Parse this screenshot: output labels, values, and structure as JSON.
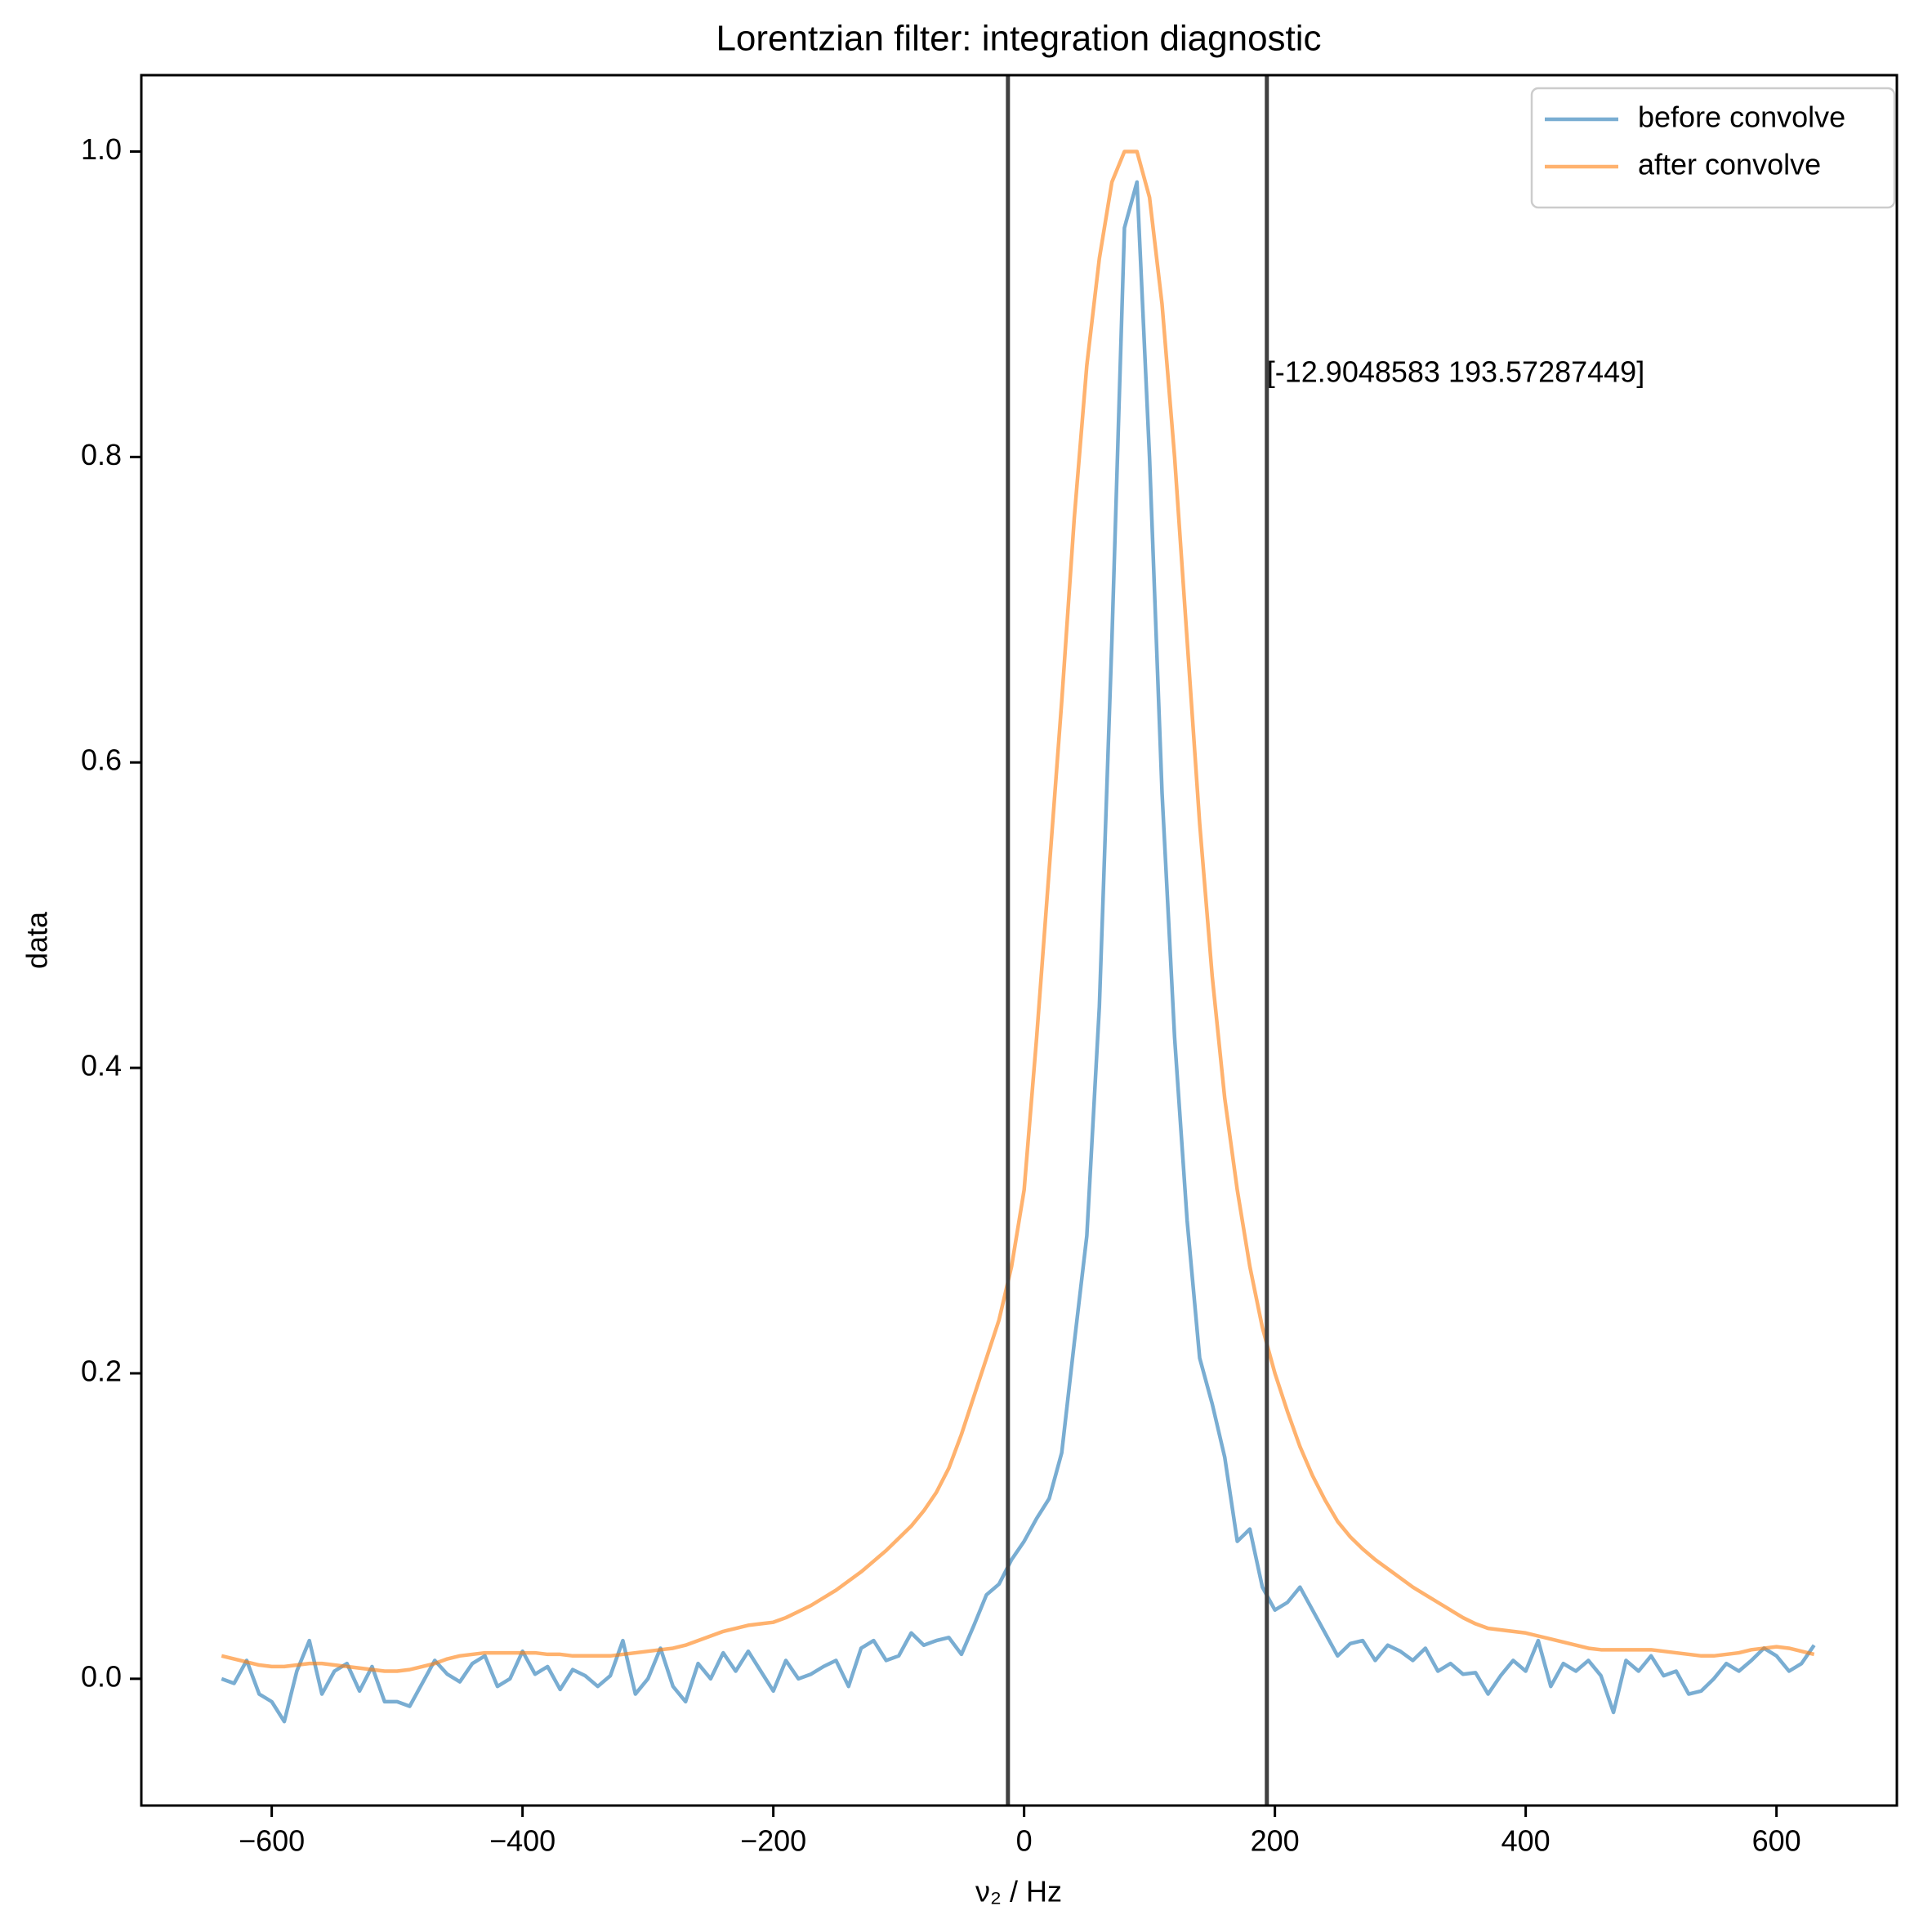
{
  "chart_data": {
    "type": "line",
    "title": "Lorentzian filter: integration diagnostic",
    "xlabel": "ν₂ / Hz",
    "ylabel": "data",
    "x": [
      -640,
      -630,
      -620,
      -610,
      -600,
      -590,
      -580,
      -570,
      -560,
      -550,
      -540,
      -530,
      -520,
      -510,
      -500,
      -490,
      -480,
      -470,
      -460,
      -450,
      -440,
      -430,
      -420,
      -410,
      -400,
      -390,
      -380,
      -370,
      -360,
      -350,
      -340,
      -330,
      -320,
      -310,
      -300,
      -290,
      -280,
      -270,
      -260,
      -250,
      -240,
      -230,
      -220,
      -210,
      -200,
      -190,
      -180,
      -170,
      -160,
      -150,
      -140,
      -130,
      -120,
      -110,
      -100,
      -90,
      -80,
      -70,
      -60,
      -50,
      -40,
      -30,
      -20,
      -10,
      0,
      10,
      20,
      30,
      40,
      50,
      60,
      70,
      80,
      90,
      100,
      110,
      120,
      130,
      140,
      150,
      160,
      170,
      180,
      190,
      200,
      210,
      220,
      230,
      240,
      250,
      260,
      270,
      280,
      290,
      300,
      310,
      320,
      330,
      340,
      350,
      360,
      370,
      380,
      390,
      400,
      410,
      420,
      430,
      440,
      450,
      460,
      470,
      480,
      490,
      500,
      510,
      520,
      530,
      540,
      550,
      560,
      570,
      580,
      590,
      600,
      610,
      620,
      630
    ],
    "series": [
      {
        "name": "before convolve",
        "color": "#1f77b4",
        "values": [
          0.0,
          -0.003,
          0.012,
          -0.01,
          -0.015,
          -0.028,
          0.005,
          0.025,
          -0.01,
          0.005,
          0.01,
          -0.008,
          0.008,
          -0.015,
          -0.015,
          -0.018,
          -0.003,
          0.012,
          0.003,
          -0.002,
          0.01,
          0.015,
          -0.005,
          0.0,
          0.018,
          0.003,
          0.008,
          -0.007,
          0.006,
          0.002,
          -0.005,
          0.002,
          0.025,
          -0.01,
          0.0,
          0.02,
          -0.005,
          -0.015,
          0.01,
          0.0,
          0.017,
          0.005,
          0.018,
          0.005,
          -0.008,
          0.012,
          0.0,
          0.003,
          0.008,
          0.012,
          -0.005,
          0.02,
          0.025,
          0.012,
          0.015,
          0.03,
          0.022,
          0.025,
          0.027,
          0.016,
          0.035,
          0.055,
          0.062,
          0.078,
          0.09,
          0.105,
          0.118,
          0.148,
          0.22,
          0.29,
          0.44,
          0.68,
          0.95,
          0.98,
          0.8,
          0.58,
          0.42,
          0.3,
          0.21,
          0.18,
          0.145,
          0.09,
          0.098,
          0.06,
          0.045,
          0.05,
          0.06,
          0.045,
          0.03,
          0.015,
          0.023,
          0.025,
          0.012,
          0.022,
          0.018,
          0.012,
          0.02,
          0.005,
          0.01,
          0.003,
          0.004,
          -0.01,
          0.002,
          0.012,
          0.005,
          0.025,
          -0.005,
          0.01,
          0.005,
          0.012,
          0.002,
          -0.022,
          0.012,
          0.005,
          0.015,
          0.002,
          0.005,
          -0.01,
          -0.008,
          0.0,
          0.01,
          0.005,
          0.012,
          0.02,
          0.015,
          0.005,
          0.01,
          0.022
        ]
      },
      {
        "name": "after convolve",
        "color": "#ff7f0e",
        "values": [
          0.015,
          0.013,
          0.011,
          0.009,
          0.008,
          0.008,
          0.009,
          0.01,
          0.01,
          0.009,
          0.008,
          0.007,
          0.006,
          0.005,
          0.005,
          0.006,
          0.008,
          0.01,
          0.013,
          0.015,
          0.016,
          0.017,
          0.017,
          0.017,
          0.017,
          0.017,
          0.016,
          0.016,
          0.015,
          0.015,
          0.015,
          0.015,
          0.016,
          0.017,
          0.018,
          0.019,
          0.02,
          0.022,
          0.025,
          0.028,
          0.031,
          0.033,
          0.035,
          0.036,
          0.037,
          0.04,
          0.044,
          0.048,
          0.053,
          0.058,
          0.064,
          0.07,
          0.077,
          0.084,
          0.092,
          0.1,
          0.11,
          0.122,
          0.138,
          0.16,
          0.185,
          0.21,
          0.235,
          0.27,
          0.32,
          0.42,
          0.53,
          0.64,
          0.76,
          0.86,
          0.93,
          0.98,
          1.0,
          1.0,
          0.97,
          0.9,
          0.8,
          0.68,
          0.56,
          0.46,
          0.38,
          0.32,
          0.27,
          0.23,
          0.2,
          0.175,
          0.152,
          0.133,
          0.117,
          0.103,
          0.093,
          0.085,
          0.078,
          0.072,
          0.066,
          0.06,
          0.055,
          0.05,
          0.045,
          0.04,
          0.036,
          0.033,
          0.032,
          0.031,
          0.03,
          0.028,
          0.026,
          0.024,
          0.022,
          0.02,
          0.019,
          0.019,
          0.019,
          0.019,
          0.019,
          0.018,
          0.017,
          0.016,
          0.015,
          0.015,
          0.016,
          0.017,
          0.019,
          0.02,
          0.021,
          0.02,
          0.018,
          0.016
        ]
      }
    ],
    "vlines": [
      -12.9048583,
      193.57287449
    ],
    "vline_color": "#404040",
    "annotation": "[-12.9048583  193.57287449]",
    "xlim": [
      -704,
      696
    ],
    "ylim": [
      -0.083,
      1.05
    ],
    "xticks": [
      {
        "value": -600,
        "label": "−600"
      },
      {
        "value": -400,
        "label": "−400"
      },
      {
        "value": -200,
        "label": "−200"
      },
      0,
      200,
      400,
      600
    ],
    "yticks": [
      {
        "value": 0,
        "label": "0.0"
      },
      0.2,
      0.4,
      0.6,
      0.8,
      {
        "value": 1,
        "label": "1.0"
      }
    ],
    "legend": "upper right"
  }
}
